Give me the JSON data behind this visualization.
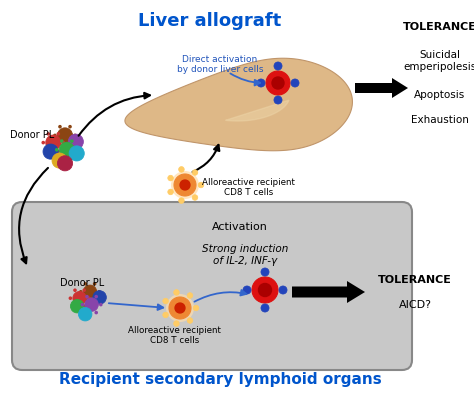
{
  "title_top": "Liver allograft",
  "title_bottom": "Recipient secondary lymphoid organs",
  "title_color": "#0055CC",
  "tolerance_label": "TOLERANCE",
  "tolerance_items": [
    "Suicidal\nemperipolesis",
    "Apoptosis",
    "Exhaustion"
  ],
  "tolerance2_label": "TOLERANCE",
  "tolerance2_sub": "AICD?",
  "direct_activation_text": "Direct activation\nby donor liver cells",
  "activation_text": "Activation",
  "strong_induction_text": "Strong induction\nof IL-2, INF-γ",
  "donor_pl_label": "Donor PL",
  "donor_pl2_label": "Donor PL",
  "alloreactive_label": "Alloreactive recipient\nCD8 T cells",
  "alloreactive2_label": "Alloreactive recipient\nCD8 T cells",
  "bg_color": "#ffffff",
  "liver_color": "#DEB887",
  "lymph_box_color": "#C8C8C8",
  "lymph_box_edge": "#888888",
  "arrow_color": "#000000",
  "blue_arrow_color": "#4488CC",
  "cell_colors_top": [
    "#8B4513",
    "#CC3333",
    "#8844AA",
    "#2244AA",
    "#33AA44",
    "#DDAA22",
    "#22AACC",
    "#AA2244"
  ],
  "cell_colors_bot": [
    "#8B4513",
    "#CC3333",
    "#2244AA",
    "#33AA44",
    "#8844AA",
    "#22AACC"
  ]
}
